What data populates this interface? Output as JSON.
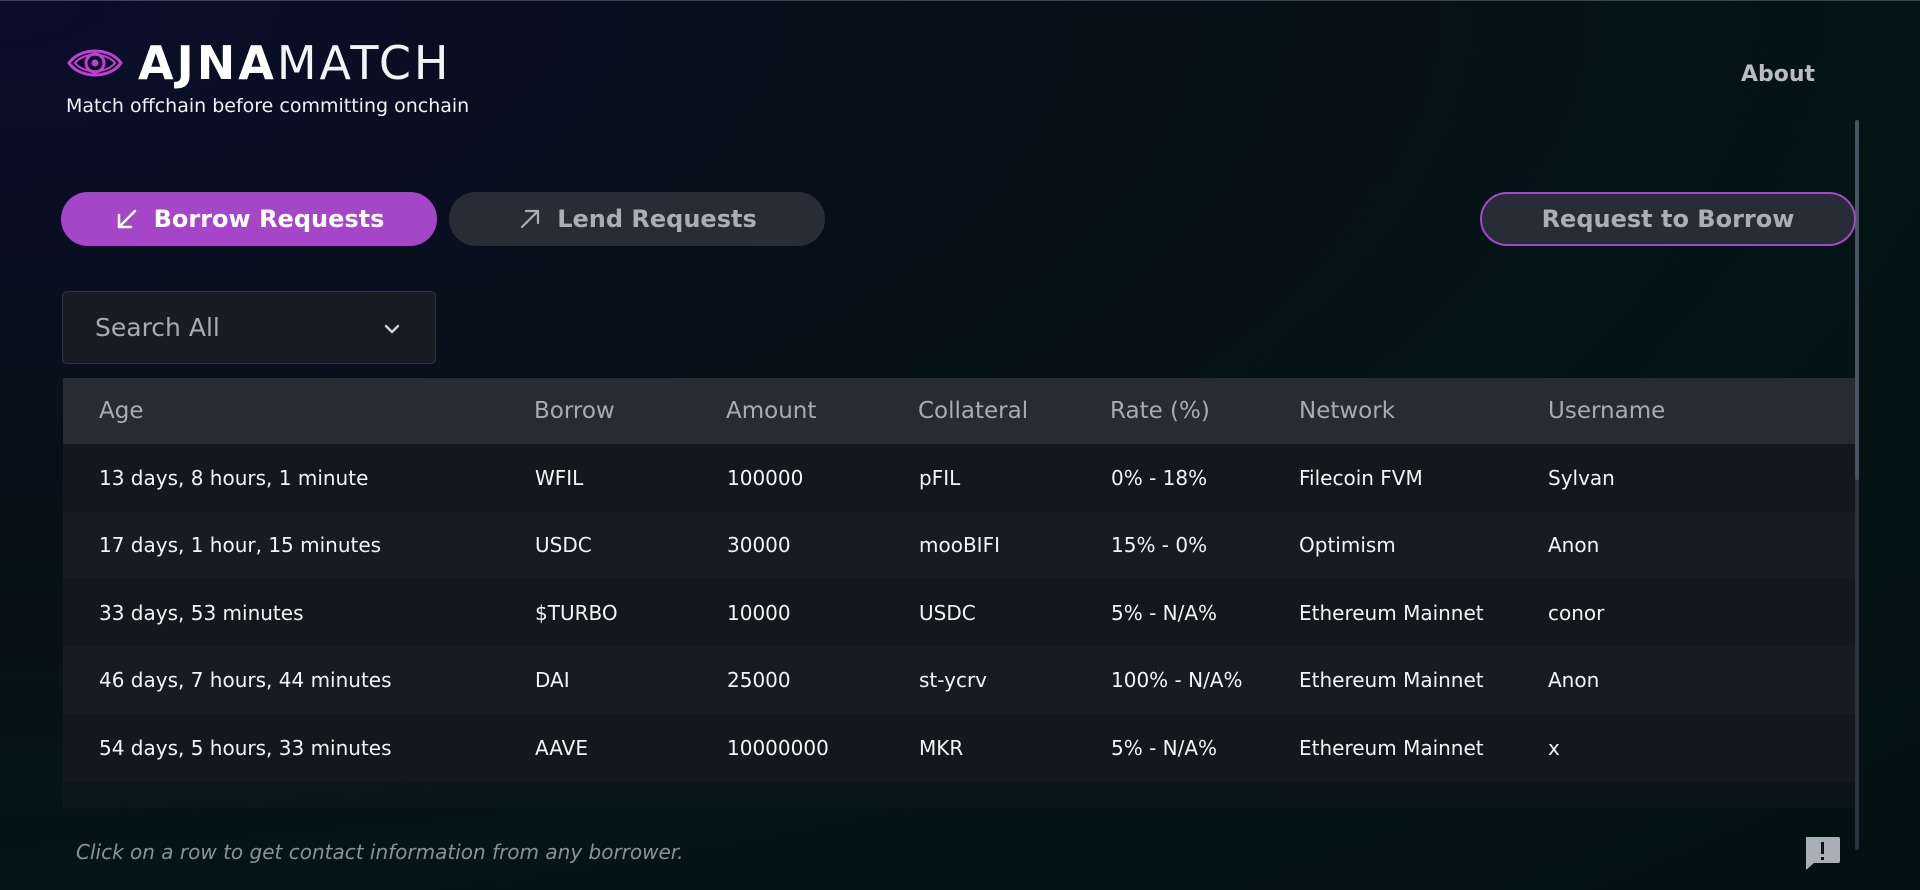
{
  "brand": {
    "name_bold": "AJNA",
    "name_light": "MATCH",
    "tagline": "Match offchain before committing onchain",
    "accent": "#a546c9"
  },
  "nav": {
    "about": "About"
  },
  "tabs": [
    {
      "label": "Borrow Requests",
      "icon": "arrow-down-left-icon",
      "active": true
    },
    {
      "label": "Lend Requests",
      "icon": "arrow-up-right-icon",
      "active": false
    }
  ],
  "request_button": "Request to Borrow",
  "search": {
    "label": "Search All",
    "icon": "chevron-down-icon"
  },
  "table": {
    "columns": [
      "Age",
      "Borrow",
      "Amount",
      "Collateral",
      "Rate (%)",
      "Network",
      "Username"
    ],
    "rows": [
      [
        "13 days, 8 hours, 1 minute",
        "WFIL",
        "100000",
        "pFIL",
        "0% - 18%",
        "Filecoin FVM",
        "Sylvan"
      ],
      [
        "17 days, 1 hour, 15 minutes",
        "USDC",
        "30000",
        "mooBIFI",
        "15% - 0%",
        "Optimism",
        "Anon"
      ],
      [
        "33 days, 53 minutes",
        "$TURBO",
        "10000",
        "USDC",
        "5% - N/A%",
        "Ethereum Mainnet",
        "conor"
      ],
      [
        "46 days, 7 hours, 44 minutes",
        "DAI",
        "25000",
        "st-ycrv",
        "100% - N/A%",
        "Ethereum Mainnet",
        "Anon"
      ],
      [
        "54 days, 5 hours, 33 minutes",
        "AAVE",
        "10000000",
        "MKR",
        "5% - N/A%",
        "Ethereum Mainnet",
        "x"
      ]
    ]
  },
  "footer": {
    "note": "Click on a row to get contact information from any borrower.",
    "feedback_icon": "feedback-icon"
  }
}
